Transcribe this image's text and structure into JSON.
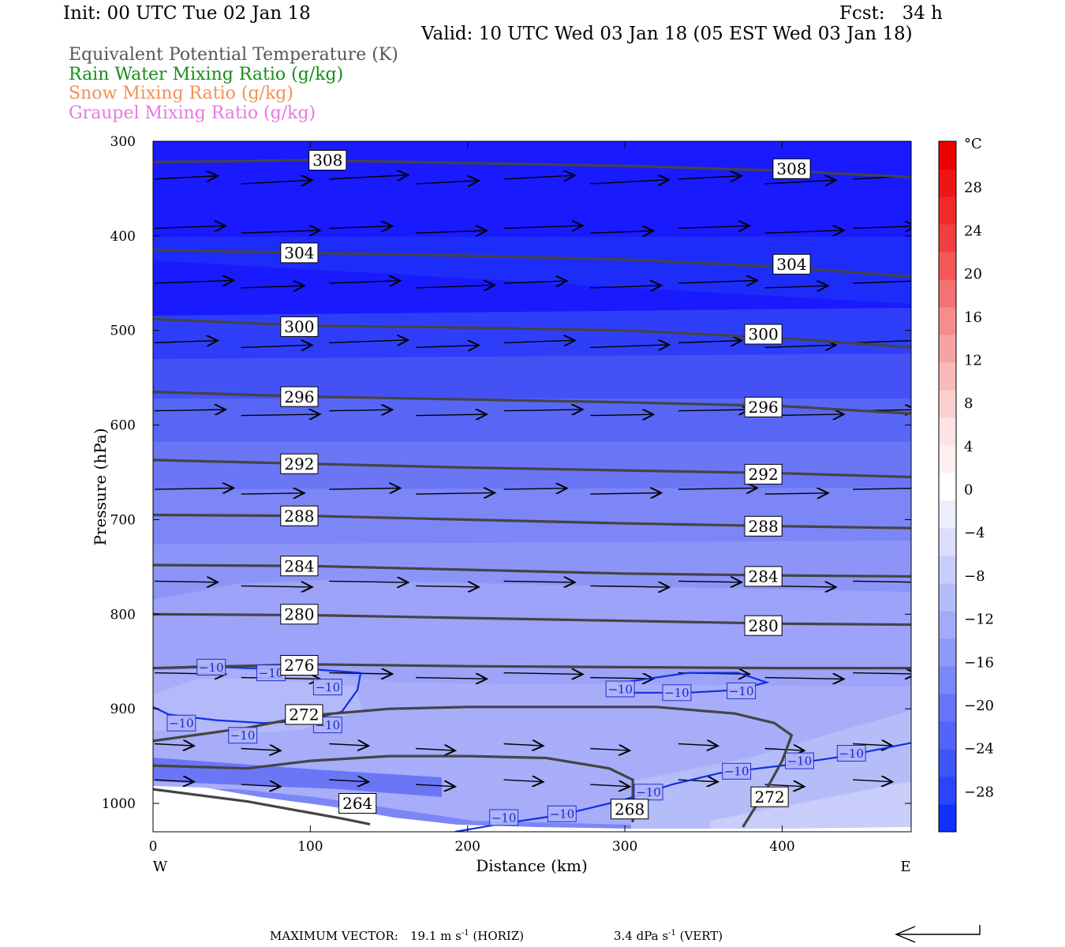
{
  "header": {
    "init": "Init: 00 UTC Tue 02 Jan 18",
    "fcst": "Fcst:   34 h",
    "valid": "Valid: 10 UTC Wed 03 Jan 18 (05 EST Wed 03 Jan 18)"
  },
  "legend": [
    {
      "label": "Equivalent Potential Temperature (K)",
      "color": "#555555"
    },
    {
      "label": "Rain Water Mixing Ratio (g/kg)",
      "color": "#1a8c1a"
    },
    {
      "label": "Snow Mixing Ratio (g/kg)",
      "color": "#f0905a"
    },
    {
      "label": "Graupel Mixing Ratio (g/kg)",
      "color": "#e878e0"
    }
  ],
  "chart_data": {
    "type": "contour",
    "xlabel": "Distance (km)",
    "ylabel": "Pressure (hPa)",
    "xlim": [
      0,
      482
    ],
    "ylim": [
      1030,
      300
    ],
    "x_ticks": [
      0,
      100,
      200,
      300,
      400
    ],
    "y_ticks": [
      300,
      400,
      500,
      600,
      700,
      800,
      900,
      1000
    ],
    "west_label": "W",
    "east_label": "E",
    "theta_e_contours": [
      {
        "value": "308",
        "points": [
          [
            0,
            322
          ],
          [
            100,
            320
          ],
          [
            200,
            323
          ],
          [
            300,
            326
          ],
          [
            400,
            331
          ],
          [
            482,
            338
          ]
        ],
        "labels": [
          [
            111,
            320
          ],
          [
            406,
            329
          ]
        ]
      },
      {
        "value": "304",
        "points": [
          [
            0,
            415
          ],
          [
            100,
            418
          ],
          [
            200,
            421
          ],
          [
            300,
            425
          ],
          [
            400,
            433
          ],
          [
            482,
            443
          ]
        ],
        "labels": [
          [
            93,
            418
          ],
          [
            406,
            430
          ]
        ]
      },
      {
        "value": "300",
        "points": [
          [
            0,
            488
          ],
          [
            100,
            495
          ],
          [
            200,
            497
          ],
          [
            300,
            500
          ],
          [
            400,
            508
          ],
          [
            482,
            518
          ]
        ],
        "labels": [
          [
            93,
            496
          ],
          [
            388,
            504
          ]
        ]
      },
      {
        "value": "296",
        "points": [
          [
            0,
            565
          ],
          [
            100,
            570
          ],
          [
            200,
            573
          ],
          [
            300,
            576
          ],
          [
            400,
            580
          ],
          [
            482,
            588
          ]
        ],
        "labels": [
          [
            93,
            570
          ],
          [
            388,
            581
          ]
        ]
      },
      {
        "value": "292",
        "points": [
          [
            0,
            637
          ],
          [
            100,
            641
          ],
          [
            200,
            645
          ],
          [
            300,
            648
          ],
          [
            400,
            651
          ],
          [
            482,
            655
          ]
        ],
        "labels": [
          [
            93,
            641
          ],
          [
            388,
            652
          ]
        ]
      },
      {
        "value": "288",
        "points": [
          [
            0,
            695
          ],
          [
            100,
            696
          ],
          [
            200,
            700
          ],
          [
            300,
            704
          ],
          [
            400,
            707
          ],
          [
            482,
            709
          ]
        ],
        "labels": [
          [
            93,
            696
          ],
          [
            388,
            707
          ]
        ]
      },
      {
        "value": "284",
        "points": [
          [
            0,
            748
          ],
          [
            100,
            749
          ],
          [
            200,
            753
          ],
          [
            300,
            757
          ],
          [
            400,
            759
          ],
          [
            482,
            760
          ]
        ],
        "labels": [
          [
            93,
            749
          ],
          [
            388,
            760
          ]
        ]
      },
      {
        "value": "280",
        "points": [
          [
            0,
            800
          ],
          [
            100,
            801
          ],
          [
            200,
            804
          ],
          [
            300,
            807
          ],
          [
            400,
            810
          ],
          [
            482,
            811
          ]
        ],
        "labels": [
          [
            93,
            800
          ],
          [
            388,
            812
          ]
        ]
      },
      {
        "value": "276",
        "points": [
          [
            0,
            857
          ],
          [
            100,
            853
          ],
          [
            200,
            855
          ],
          [
            300,
            856
          ],
          [
            400,
            857
          ],
          [
            482,
            857
          ]
        ],
        "labels": [
          [
            93,
            854
          ]
        ]
      },
      {
        "value": "272",
        "points": [
          [
            0,
            934
          ],
          [
            60,
            920
          ],
          [
            100,
            907
          ],
          [
            150,
            900
          ],
          [
            200,
            898
          ],
          [
            260,
            898
          ],
          [
            320,
            898
          ],
          [
            370,
            905
          ],
          [
            395,
            915
          ],
          [
            406,
            928
          ],
          [
            400,
            955
          ],
          [
            390,
            985
          ],
          [
            375,
            1025
          ]
        ],
        "labels": [
          [
            96,
            906
          ],
          [
            392,
            993
          ]
        ]
      },
      {
        "value": "268",
        "points": [
          [
            0,
            960
          ],
          [
            60,
            963
          ],
          [
            100,
            955
          ],
          [
            150,
            950
          ],
          [
            200,
            950
          ],
          [
            250,
            952
          ],
          [
            290,
            963
          ],
          [
            305,
            975
          ],
          [
            305,
            1020
          ]
        ],
        "labels": [
          [
            303,
            1006
          ]
        ]
      },
      {
        "value": "264",
        "points": [
          [
            0,
            985
          ],
          [
            60,
            998
          ],
          [
            100,
            1010
          ],
          [
            120,
            1016
          ],
          [
            138,
            1022
          ]
        ],
        "labels": [
          [
            130,
            1000
          ]
        ]
      }
    ],
    "temp_contours": [
      {
        "value": "−10",
        "points": [
          [
            0,
            898
          ],
          [
            10,
            906
          ],
          [
            40,
            912
          ],
          [
            70,
            915
          ],
          [
            96,
            913
          ],
          [
            120,
            903
          ],
          [
            130,
            880
          ],
          [
            132,
            862
          ],
          [
            100,
            858
          ],
          [
            60,
            857
          ],
          [
            30,
            855
          ],
          [
            0,
            857
          ]
        ],
        "labels": [
          [
            37,
            856
          ],
          [
            75,
            862
          ],
          [
            111,
            877
          ],
          [
            18,
            915
          ],
          [
            57,
            928
          ],
          [
            111,
            917
          ]
        ]
      },
      {
        "value": "−10",
        "points": [
          [
            192,
            1030
          ],
          [
            220,
            1022
          ],
          [
            260,
            1012
          ],
          [
            300,
            996
          ],
          [
            330,
            980
          ],
          [
            360,
            968
          ],
          [
            400,
            960
          ],
          [
            440,
            950
          ],
          [
            482,
            936
          ]
        ],
        "labels": [
          [
            223,
            1015
          ],
          [
            260,
            1011
          ],
          [
            315,
            988
          ],
          [
            371,
            966
          ],
          [
            411,
            955
          ],
          [
            444,
            947
          ]
        ]
      },
      {
        "value": "−10",
        "points": [
          [
            295,
            873
          ],
          [
            340,
            862
          ],
          [
            372,
            862
          ],
          [
            390,
            872
          ],
          [
            372,
            880
          ],
          [
            340,
            883
          ],
          [
            300,
            883
          ],
          [
            292,
            880
          ]
        ],
        "labels": [
          [
            297,
            879
          ],
          [
            333,
            883
          ],
          [
            374,
            881
          ]
        ]
      }
    ],
    "colorbar": {
      "unit": "°C",
      "tick_labels": [
        "28",
        "24",
        "20",
        "16",
        "12",
        "8",
        "4",
        "0",
        "−4",
        "−8",
        "−12",
        "−16",
        "−20",
        "−24",
        "−28"
      ],
      "colors": [
        "#1030ff",
        "#2a45ff",
        "#3d55fb",
        "#5265f9",
        "#6575f7",
        "#7a88f8",
        "#8e9af8",
        "#a2abf8",
        "#b5bdf9",
        "#c8cdf9",
        "#dadefb",
        "#ecedfd",
        "#ffffff",
        "#fff0f0",
        "#fde3e3",
        "#fcd0d0",
        "#fbbaba",
        "#f8a3a3",
        "#f78c8c",
        "#f57272",
        "#f35858",
        "#f23e3e",
        "#f02a2a",
        "#ef1515",
        "#ee0000"
      ]
    },
    "wind_rows": [
      {
        "p": 340,
        "angle": -3
      },
      {
        "p": 392,
        "angle": -2
      },
      {
        "p": 450,
        "angle": -2
      },
      {
        "p": 513,
        "angle": -2
      },
      {
        "p": 585,
        "angle": -1
      },
      {
        "p": 668,
        "angle": -1
      },
      {
        "p": 765,
        "angle": 1
      },
      {
        "p": 862,
        "angle": 1
      },
      {
        "p": 937,
        "angle": 3
      },
      {
        "p": 975,
        "angle": 3
      }
    ]
  },
  "footer": {
    "label": "MAXIMUM VECTOR:",
    "horiz_value": "19.1 m s",
    "horiz_exp": "-1",
    "horiz_tag": "(HORIZ)",
    "vert_value": "3.4 dPa s",
    "vert_exp": "-1",
    "vert_tag": "(VERT)"
  }
}
